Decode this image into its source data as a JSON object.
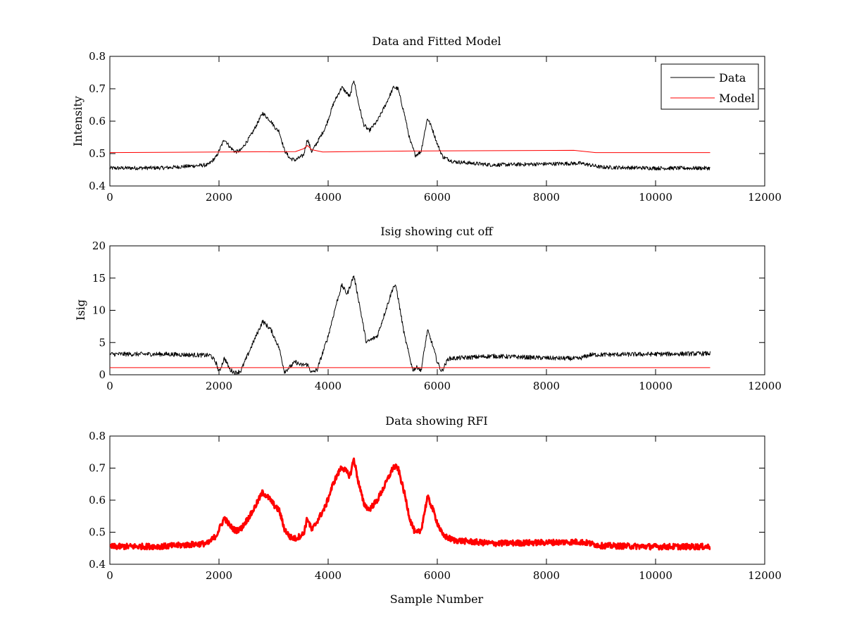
{
  "figure": {
    "background": "#ffffff"
  },
  "chart_data": [
    {
      "type": "line",
      "title": "Data and Fitted Model",
      "xlabel": "",
      "ylabel": "Intensity",
      "xlim": [
        0,
        12000
      ],
      "ylim": [
        0.4,
        0.8
      ],
      "xticks": [
        0,
        2000,
        4000,
        6000,
        8000,
        10000,
        12000
      ],
      "yticks": [
        0.4,
        0.5,
        0.6,
        0.7,
        0.8
      ],
      "ytick_decimals": 1,
      "legend": {
        "position": "top-right",
        "entries": [
          "Data",
          "Model"
        ]
      },
      "series": [
        {
          "name": "Data",
          "color": "#000000",
          "noise": 0.006,
          "x": [
            0,
            1000,
            1800,
            1950,
            2100,
            2200,
            2300,
            2400,
            2600,
            2800,
            2950,
            3050,
            3100,
            3200,
            3300,
            3400,
            3550,
            3620,
            3700,
            3800,
            3950,
            4100,
            4250,
            4350,
            4400,
            4470,
            4550,
            4650,
            4750,
            4900,
            5050,
            5200,
            5280,
            5400,
            5500,
            5600,
            5700,
            5820,
            5900,
            6000,
            6100,
            6300,
            7000,
            8000,
            8600,
            8700,
            9000,
            10000,
            11000
          ],
          "y": [
            0.455,
            0.456,
            0.465,
            0.49,
            0.545,
            0.52,
            0.505,
            0.51,
            0.56,
            0.625,
            0.6,
            0.575,
            0.57,
            0.51,
            0.485,
            0.48,
            0.495,
            0.545,
            0.505,
            0.535,
            0.58,
            0.655,
            0.705,
            0.685,
            0.675,
            0.73,
            0.66,
            0.59,
            0.57,
            0.6,
            0.65,
            0.705,
            0.7,
            0.62,
            0.54,
            0.495,
            0.505,
            0.61,
            0.58,
            0.53,
            0.49,
            0.475,
            0.465,
            0.468,
            0.47,
            0.468,
            0.458,
            0.455,
            0.455
          ]
        },
        {
          "name": "Model",
          "color": "#ff0000",
          "noise": 0,
          "x": [
            0,
            3400,
            3550,
            3620,
            3700,
            3900,
            5500,
            8500,
            8900,
            11000
          ],
          "y": [
            0.503,
            0.506,
            0.515,
            0.525,
            0.512,
            0.505,
            0.508,
            0.51,
            0.503,
            0.503
          ]
        }
      ]
    },
    {
      "type": "line",
      "title": "Isig showing cut off",
      "xlabel": "",
      "ylabel": "Isig",
      "xlim": [
        0,
        12000
      ],
      "ylim": [
        0,
        20
      ],
      "xticks": [
        0,
        2000,
        4000,
        6000,
        8000,
        10000,
        12000
      ],
      "yticks": [
        0,
        5,
        10,
        15,
        20
      ],
      "ytick_decimals": 0,
      "series": [
        {
          "color": "#000000",
          "noise": 0.35,
          "x": [
            0,
            1000,
            1850,
            1950,
            2000,
            2100,
            2200,
            2300,
            2400,
            2600,
            2800,
            2950,
            3100,
            3200,
            3300,
            3400,
            3500,
            3620,
            3700,
            3800,
            4000,
            4150,
            4250,
            4350,
            4470,
            4550,
            4700,
            4900,
            5200,
            5250,
            5400,
            5550,
            5650,
            5700,
            5820,
            5900,
            6000,
            6080,
            6200,
            7000,
            8000,
            8600,
            8800,
            10000,
            11000
          ],
          "y": [
            3.2,
            3.2,
            3.0,
            1.8,
            0.4,
            2.6,
            0.8,
            0.3,
            0.6,
            4.5,
            8.3,
            7.0,
            4.2,
            0.5,
            1.2,
            2.0,
            1.5,
            1.6,
            0.3,
            0.8,
            6.0,
            11.0,
            13.9,
            12.5,
            15.4,
            12.0,
            5.0,
            6.0,
            13.8,
            13.5,
            6.0,
            0.8,
            1.2,
            0.5,
            6.9,
            5.0,
            2.0,
            0.5,
            2.5,
            2.9,
            2.6,
            2.5,
            3.1,
            3.2,
            3.3
          ]
        },
        {
          "color": "#ff0000",
          "noise": 0,
          "x": [
            0,
            11000
          ],
          "y": [
            1.1,
            1.1
          ]
        }
      ]
    },
    {
      "type": "line",
      "title": "Data showing RFI",
      "xlabel": "Sample Number",
      "ylabel": "",
      "xlim": [
        0,
        12000
      ],
      "ylim": [
        0.4,
        0.8
      ],
      "xticks": [
        0,
        2000,
        4000,
        6000,
        8000,
        10000,
        12000
      ],
      "yticks": [
        0.4,
        0.5,
        0.6,
        0.7,
        0.8
      ],
      "ytick_decimals": 1,
      "series": [
        {
          "color": "#ff0000",
          "noise": 0.009,
          "stroke_width": 3,
          "x": [
            0,
            1000,
            1800,
            1950,
            2100,
            2200,
            2300,
            2400,
            2600,
            2800,
            2950,
            3050,
            3100,
            3200,
            3300,
            3400,
            3550,
            3620,
            3700,
            3800,
            3950,
            4100,
            4250,
            4350,
            4400,
            4470,
            4550,
            4650,
            4750,
            4900,
            5050,
            5200,
            5280,
            5400,
            5500,
            5600,
            5700,
            5820,
            5900,
            6000,
            6100,
            6300,
            7000,
            8000,
            8600,
            8700,
            9000,
            10000,
            11000
          ],
          "y": [
            0.455,
            0.456,
            0.465,
            0.49,
            0.545,
            0.52,
            0.505,
            0.51,
            0.56,
            0.625,
            0.6,
            0.575,
            0.57,
            0.51,
            0.485,
            0.48,
            0.495,
            0.545,
            0.505,
            0.535,
            0.58,
            0.655,
            0.705,
            0.685,
            0.675,
            0.73,
            0.66,
            0.59,
            0.57,
            0.6,
            0.65,
            0.705,
            0.7,
            0.62,
            0.54,
            0.495,
            0.505,
            0.61,
            0.58,
            0.53,
            0.49,
            0.475,
            0.465,
            0.468,
            0.47,
            0.468,
            0.458,
            0.455,
            0.455
          ]
        }
      ]
    }
  ]
}
